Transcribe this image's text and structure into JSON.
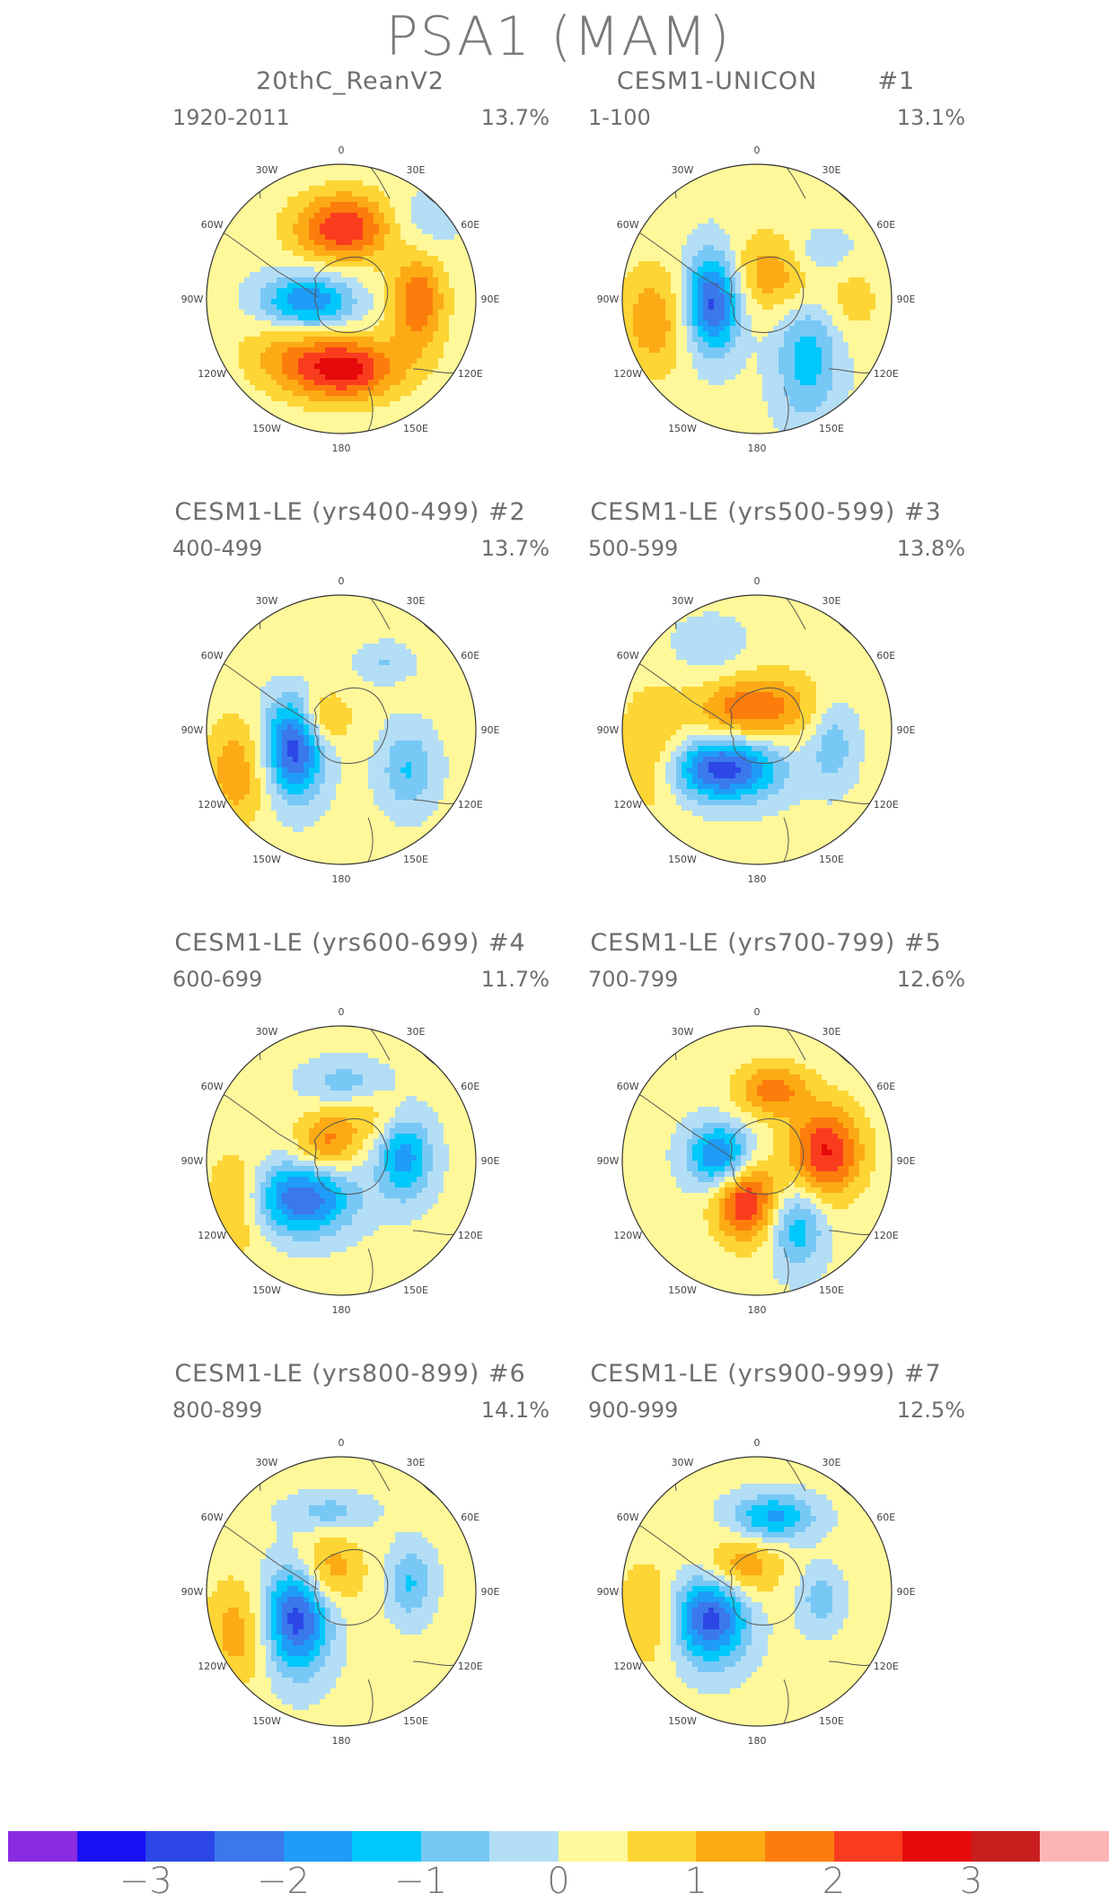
{
  "title": "PSA1 (MAM)",
  "panels": [
    {
      "title": "20thC_ReanV2",
      "years": "1920-2011",
      "percent": "13.7%"
    },
    {
      "title": "CESM1-UNICON       #1",
      "years": "1-100",
      "percent": "13.1%"
    },
    {
      "title": "CESM1-LE (yrs400-499) #2",
      "years": "400-499",
      "percent": "13.7%"
    },
    {
      "title": "CESM1-LE (yrs500-599) #3",
      "years": "500-599",
      "percent": "13.8%"
    },
    {
      "title": "CESM1-LE (yrs600-699) #4",
      "years": "600-699",
      "percent": "11.7%"
    },
    {
      "title": "CESM1-LE (yrs700-799) #5",
      "years": "700-799",
      "percent": "12.6%"
    },
    {
      "title": "CESM1-LE (yrs800-899) #6",
      "years": "800-899",
      "percent": "14.1%"
    },
    {
      "title": "CESM1-LE (yrs900-999) #7",
      "years": "900-999",
      "percent": "12.5%"
    }
  ],
  "longitude_labels": [
    "0",
    "30E",
    "60E",
    "90E",
    "120E",
    "150E",
    "180",
    "150W",
    "120W",
    "90W",
    "60W",
    "30W"
  ],
  "colorbar": {
    "colors": [
      "#8a2be2",
      "#1a10f5",
      "#2c47e6",
      "#3a78ec",
      "#1e9cf7",
      "#00c8fa",
      "#78c8f5",
      "#b4def5",
      "#fff89a",
      "#fdd535",
      "#fcab14",
      "#fc7d0c",
      "#fa3c1e",
      "#e60a0a",
      "#c81e1e",
      "#fcb4b4"
    ],
    "ticks": [
      "−3",
      "−2",
      "−1",
      "0",
      "1",
      "2",
      "3"
    ]
  }
}
